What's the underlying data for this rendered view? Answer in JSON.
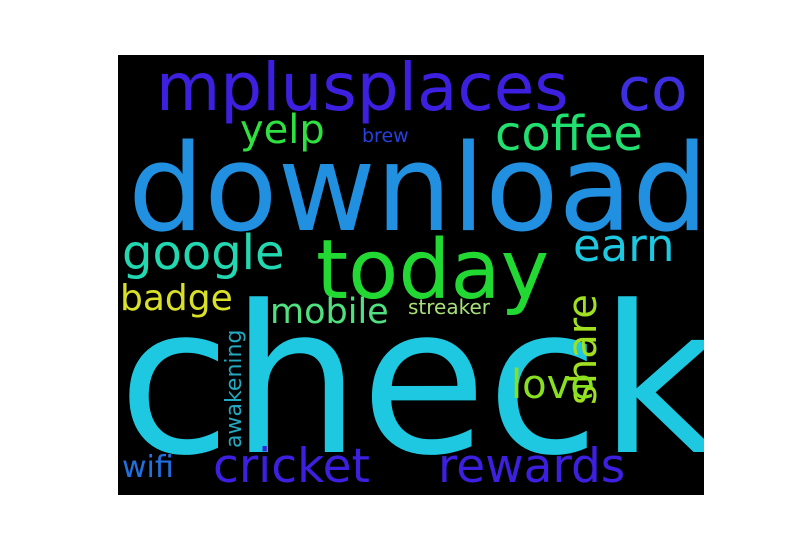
{
  "wordcloud": {
    "background": "#000000",
    "words": [
      {
        "text": "check",
        "color": "#1ec8e0"
      },
      {
        "text": "download",
        "color": "#2190e0"
      },
      {
        "text": "today",
        "color": "#22d832"
      },
      {
        "text": "mplusplaces",
        "color": "#3d1fe0"
      },
      {
        "text": "cricket",
        "color": "#3d1fe0"
      },
      {
        "text": "rewards",
        "color": "#3d1fe0"
      },
      {
        "text": "co",
        "color": "#3d2fe0"
      },
      {
        "text": "coffee",
        "color": "#22e070"
      },
      {
        "text": "earn",
        "color": "#1ec8e0"
      },
      {
        "text": "google",
        "color": "#22d8b0"
      },
      {
        "text": "yelp",
        "color": "#30e040"
      },
      {
        "text": "badge",
        "color": "#d8e028"
      },
      {
        "text": "mobile",
        "color": "#50e080"
      },
      {
        "text": "share",
        "color": "#a0e020"
      },
      {
        "text": "love",
        "color": "#88e020"
      },
      {
        "text": "wifi",
        "color": "#2270e0"
      },
      {
        "text": "awakening",
        "color": "#22a8c0"
      },
      {
        "text": "streaker",
        "color": "#a8e078"
      },
      {
        "text": "brew",
        "color": "#2840e0"
      }
    ]
  }
}
